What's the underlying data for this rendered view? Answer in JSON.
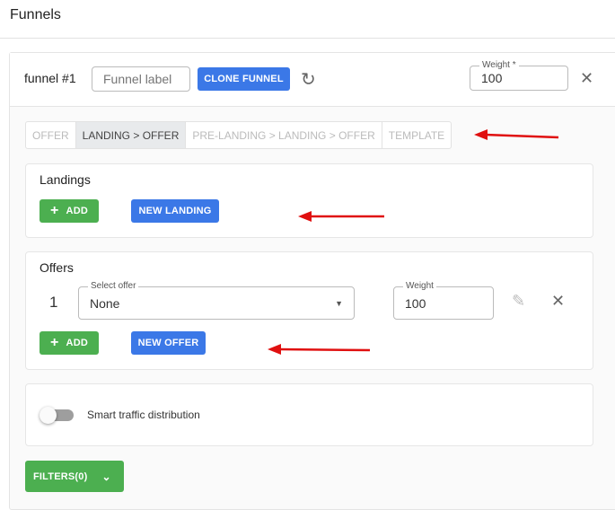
{
  "page_title": "Funnels",
  "funnel": {
    "name": "funnel #1",
    "label_placeholder": "Funnel label",
    "clone_label": "CLONE FUNNEL",
    "weight_label": "Weight *",
    "weight_value": "100"
  },
  "tabs": [
    {
      "label": "OFFER",
      "active": false
    },
    {
      "label": "LANDING > OFFER",
      "active": true
    },
    {
      "label": "PRE-LANDING > LANDING > OFFER",
      "active": false
    },
    {
      "label": "TEMPLATE",
      "active": false
    }
  ],
  "landings": {
    "title": "Landings",
    "add_label": "ADD",
    "new_label": "NEW LANDING"
  },
  "offers": {
    "title": "Offers",
    "index": "1",
    "select_label": "Select offer",
    "select_value": "None",
    "weight_label": "Weight",
    "weight_value": "100",
    "add_label": "ADD",
    "new_label": "NEW OFFER"
  },
  "smart": {
    "label": "Smart traffic distribution",
    "enabled": false
  },
  "filters": {
    "label": "FILTERS(0)"
  },
  "colors": {
    "primary": "#3b78e7",
    "success": "#4caf50",
    "annotation": "#e01010"
  }
}
